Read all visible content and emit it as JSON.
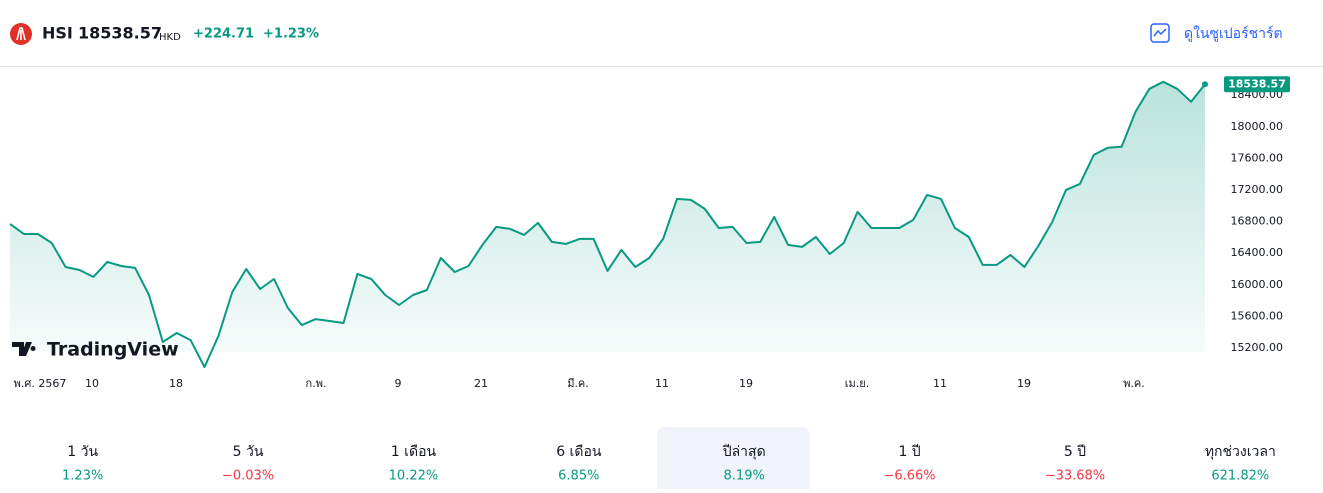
{
  "header": {
    "symbol": "HSI",
    "price": "18538.57",
    "currency": "HKD",
    "change": "+224.71",
    "change_pct": "+1.23%",
    "link": "ดูในซูเปอร์ชาร์ต"
  },
  "chart_data": {
    "type": "area",
    "color": "#089981",
    "values": [
      16771,
      16644,
      16644,
      16530,
      16226,
      16188,
      16100,
      16290,
      16239,
      16214,
      15872,
      15276,
      15390,
      15301,
      14959,
      15352,
      15910,
      16201,
      15948,
      16074,
      15707,
      15491,
      15567,
      15542,
      15517,
      16138,
      16074,
      15872,
      15745,
      15872,
      15935,
      16340,
      16163,
      16239,
      16505,
      16733,
      16708,
      16632,
      16784,
      16543,
      16518,
      16581,
      16581,
      16176,
      16442,
      16226,
      16340,
      16581,
      17088,
      17075,
      16961,
      16720,
      16733,
      16530,
      16543,
      16860,
      16505,
      16480,
      16606,
      16391,
      16530,
      16923,
      16720,
      16720,
      16720,
      16822,
      17138,
      17088,
      16720,
      16606,
      16252,
      16252,
      16378,
      16226,
      16492,
      16796,
      17202,
      17278,
      17645,
      17734,
      17747,
      18190,
      18482,
      18570,
      18482,
      18317,
      18538.57
    ],
    "last_label": "18538.57",
    "ylim": [
      15150,
      18770
    ],
    "yticks": [
      {
        "value": 15200,
        "label": "15200.00"
      },
      {
        "value": 15600,
        "label": "15600.00"
      },
      {
        "value": 16000,
        "label": "16000.00"
      },
      {
        "value": 16400,
        "label": "16400.00"
      },
      {
        "value": 16800,
        "label": "16800.00"
      },
      {
        "value": 17200,
        "label": "17200.00"
      },
      {
        "value": 17600,
        "label": "17600.00"
      },
      {
        "value": 18000,
        "label": "18000.00"
      },
      {
        "value": 18400,
        "label": "18400.00"
      }
    ],
    "xlabels": [
      "พ.ศ. 2567",
      "10",
      "18",
      "ก.พ.",
      "9",
      "21",
      "มี.ค.",
      "11",
      "19",
      "เม.ย.",
      "11",
      "19",
      "พ.ค."
    ],
    "watermark": "TradingView"
  },
  "periods": [
    {
      "label": "1 วัน",
      "value": "1.23%"
    },
    {
      "label": "5 วัน",
      "value": "−0.03%"
    },
    {
      "label": "1 เดือน",
      "value": "10.22%"
    },
    {
      "label": "6 เดือน",
      "value": "6.85%"
    },
    {
      "label": "ปีล่าสุด",
      "value": "8.19%",
      "selected": true
    },
    {
      "label": "1 ปี",
      "value": "−6.66%"
    },
    {
      "label": "5 ปี",
      "value": "−33.68%"
    },
    {
      "label": "ทุกช่วงเวลา",
      "value": "621.82%"
    }
  ]
}
